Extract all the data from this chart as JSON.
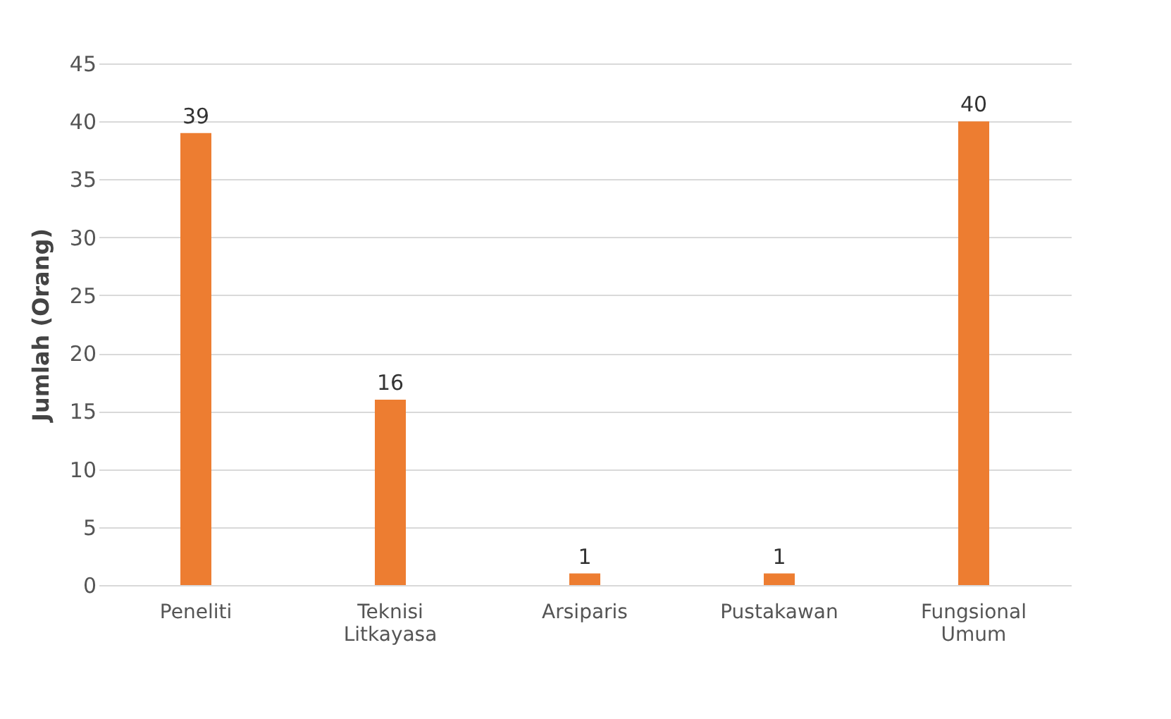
{
  "chart_data": {
    "type": "bar",
    "ylabel": "Jumlah (Orang)",
    "categories": [
      "Peneliti",
      "Teknisi Litkayasa",
      "Arsiparis",
      "Pustakawan",
      "Fungsional Umum"
    ],
    "values": [
      39,
      16,
      1,
      1,
      40
    ],
    "color": "#ed7d31",
    "ylim": [
      0,
      45
    ],
    "yticks": [
      0,
      5,
      10,
      15,
      20,
      25,
      30,
      35,
      40,
      45
    ],
    "grid": "y",
    "data_labels": true
  }
}
